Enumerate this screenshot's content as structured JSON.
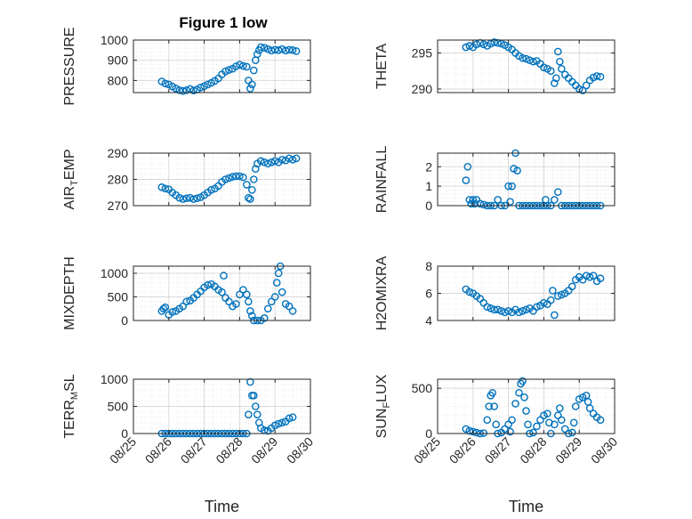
{
  "figure_title": "Figure 1 low",
  "colors": {
    "marker": "#0072BD",
    "axis": "#262626",
    "grid": "#dfdfdf"
  },
  "chart_data": [
    {
      "type": "scatter",
      "title": "Figure 1 low",
      "ylabel": "PRESSURE",
      "xlabel": "",
      "xlim": [
        "2025-08-25",
        "2025-08-30"
      ],
      "ylim": [
        740,
        1000
      ],
      "yticks": [
        800,
        900,
        1000
      ],
      "xticks": [
        "08/25",
        "08/26",
        "08/27",
        "08/28",
        "08/29",
        "08/30"
      ],
      "grid": true,
      "series": [
        {
          "x": [
            25.8,
            25.9,
            26.0,
            26.1,
            26.2,
            26.3,
            26.4,
            26.5,
            26.6,
            26.7,
            26.8,
            26.9,
            27.0,
            27.1,
            27.2,
            27.3,
            27.4,
            27.5,
            27.6,
            27.7,
            27.8,
            27.9,
            28.0,
            28.1,
            28.2,
            28.25,
            28.3,
            28.35,
            28.4,
            28.45,
            28.5,
            28.55,
            28.6,
            28.7,
            28.8,
            28.9,
            29.0,
            29.1,
            29.2,
            29.3,
            29.4,
            29.5,
            29.6
          ],
          "y": [
            795,
            785,
            780,
            770,
            760,
            752,
            748,
            752,
            758,
            750,
            755,
            765,
            772,
            780,
            788,
            798,
            810,
            830,
            845,
            852,
            858,
            870,
            878,
            872,
            868,
            800,
            760,
            780,
            850,
            900,
            930,
            950,
            965,
            962,
            955,
            948,
            952,
            950,
            955,
            948,
            952,
            950,
            945
          ]
        }
      ]
    },
    {
      "type": "scatter",
      "ylabel": "THETA",
      "xlim": [
        "2025-08-25",
        "2025-08-30"
      ],
      "ylim": [
        289.5,
        296.8
      ],
      "yticks": [
        290,
        295
      ],
      "xticks": [
        "08/25",
        "08/26",
        "08/27",
        "08/28",
        "08/29",
        "08/30"
      ],
      "grid": true,
      "series": [
        {
          "x": [
            25.8,
            25.9,
            26.0,
            26.1,
            26.2,
            26.3,
            26.4,
            26.5,
            26.6,
            26.7,
            26.8,
            26.9,
            27.0,
            27.1,
            27.2,
            27.3,
            27.4,
            27.5,
            27.6,
            27.7,
            27.8,
            27.9,
            28.0,
            28.1,
            28.2,
            28.3,
            28.35,
            28.4,
            28.45,
            28.5,
            28.6,
            28.7,
            28.8,
            28.9,
            29.0,
            29.1,
            29.2,
            29.3,
            29.4,
            29.5,
            29.6
          ],
          "y": [
            295.8,
            296.0,
            295.8,
            296.2,
            296.4,
            296.2,
            296.0,
            296.3,
            296.5,
            296.4,
            296.3,
            296.1,
            295.8,
            295.5,
            295.0,
            294.6,
            294.3,
            294.2,
            294.0,
            293.8,
            293.9,
            293.5,
            293.0,
            292.8,
            292.5,
            290.8,
            291.5,
            295.2,
            293.8,
            292.8,
            292.0,
            291.5,
            291.0,
            290.5,
            290.0,
            289.8,
            290.5,
            291.2,
            291.6,
            291.8,
            291.7
          ]
        }
      ]
    },
    {
      "type": "scatter",
      "ylabel": "AIR_TEMP",
      "xlim": [
        "2025-08-25",
        "2025-08-30"
      ],
      "ylim": [
        270,
        290
      ],
      "yticks": [
        270,
        280,
        290
      ],
      "xticks": [
        "08/25",
        "08/26",
        "08/27",
        "08/28",
        "08/29",
        "08/30"
      ],
      "grid": true,
      "series": [
        {
          "x": [
            25.8,
            25.9,
            26.0,
            26.1,
            26.2,
            26.3,
            26.4,
            26.5,
            26.6,
            26.7,
            26.8,
            26.9,
            27.0,
            27.1,
            27.2,
            27.3,
            27.4,
            27.5,
            27.6,
            27.7,
            27.8,
            27.9,
            28.0,
            28.1,
            28.2,
            28.25,
            28.3,
            28.35,
            28.4,
            28.45,
            28.5,
            28.6,
            28.7,
            28.8,
            28.9,
            29.0,
            29.1,
            29.2,
            29.3,
            29.4,
            29.5,
            29.6
          ],
          "y": [
            277,
            276.5,
            276.2,
            275,
            274,
            273,
            272.5,
            272.8,
            273,
            272.5,
            272.8,
            273.2,
            274,
            275,
            276,
            276.5,
            277.5,
            279,
            280,
            280.5,
            281,
            281.2,
            281.2,
            280.8,
            278,
            273,
            272.5,
            276,
            280,
            284,
            286,
            287,
            286.5,
            286,
            286.5,
            287,
            286.5,
            287.5,
            287.2,
            288,
            287.5,
            288
          ]
        }
      ]
    },
    {
      "type": "scatter",
      "ylabel": "RAINFALL",
      "xlim": [
        "2025-08-25",
        "2025-08-30"
      ],
      "ylim": [
        0,
        2.7
      ],
      "yticks": [
        0,
        1,
        2
      ],
      "xticks": [
        "08/25",
        "08/26",
        "08/27",
        "08/28",
        "08/29",
        "08/30"
      ],
      "grid": true,
      "series": [
        {
          "x": [
            25.8,
            25.85,
            25.9,
            25.95,
            26.0,
            26.05,
            26.1,
            26.2,
            26.3,
            26.4,
            26.5,
            26.6,
            26.7,
            26.8,
            26.9,
            27.0,
            27.05,
            27.1,
            27.15,
            27.2,
            27.25,
            27.3,
            27.4,
            27.5,
            27.6,
            27.7,
            27.8,
            27.9,
            28.0,
            28.05,
            28.1,
            28.2,
            28.3,
            28.4,
            28.5,
            28.6,
            28.7,
            28.8,
            28.9,
            29.0,
            29.1,
            29.2,
            29.3,
            29.4,
            29.5,
            29.6
          ],
          "y": [
            1.3,
            2.0,
            0.3,
            0.1,
            0.3,
            0.1,
            0.3,
            0.1,
            0.05,
            0,
            0,
            0,
            0.3,
            0,
            0,
            1.0,
            0.2,
            1.0,
            1.9,
            2.7,
            1.8,
            0,
            0,
            0,
            0,
            0,
            0,
            0,
            0,
            0.3,
            0,
            0,
            0.3,
            0.7,
            0,
            0,
            0,
            0,
            0,
            0,
            0,
            0,
            0,
            0,
            0,
            0
          ]
        }
      ]
    },
    {
      "type": "scatter",
      "ylabel": "MIXDEPTH",
      "xlim": [
        "2025-08-25",
        "2025-08-30"
      ],
      "ylim": [
        0,
        1150
      ],
      "yticks": [
        0,
        500,
        1000
      ],
      "xticks": [
        "08/25",
        "08/26",
        "08/27",
        "08/28",
        "08/29",
        "08/30"
      ],
      "grid": true,
      "series": [
        {
          "x": [
            25.8,
            25.85,
            25.9,
            26.0,
            26.1,
            26.2,
            26.3,
            26.4,
            26.5,
            26.6,
            26.7,
            26.8,
            26.9,
            27.0,
            27.1,
            27.2,
            27.3,
            27.4,
            27.5,
            27.55,
            27.6,
            27.7,
            27.8,
            27.9,
            28.0,
            28.1,
            28.2,
            28.25,
            28.3,
            28.35,
            28.4,
            28.5,
            28.6,
            28.7,
            28.8,
            28.9,
            29.0,
            29.05,
            29.1,
            29.15,
            29.2,
            29.3,
            29.4,
            29.5
          ],
          "y": [
            200,
            250,
            280,
            120,
            180,
            200,
            250,
            300,
            400,
            420,
            480,
            550,
            620,
            700,
            750,
            770,
            720,
            650,
            600,
            950,
            480,
            400,
            300,
            350,
            550,
            650,
            550,
            400,
            200,
            100,
            0,
            0,
            0,
            50,
            250,
            400,
            500,
            800,
            1000,
            1150,
            600,
            350,
            300,
            200
          ]
        }
      ]
    },
    {
      "type": "scatter",
      "ylabel": "H2OMIXRA",
      "xlim": [
        "2025-08-25",
        "2025-08-30"
      ],
      "ylim": [
        4,
        8
      ],
      "yticks": [
        4,
        6,
        8
      ],
      "xticks": [
        "08/25",
        "08/26",
        "08/27",
        "08/28",
        "08/29",
        "08/30"
      ],
      "grid": true,
      "series": [
        {
          "x": [
            25.8,
            25.9,
            26.0,
            26.1,
            26.2,
            26.3,
            26.4,
            26.5,
            26.6,
            26.7,
            26.8,
            26.9,
            27.0,
            27.1,
            27.2,
            27.3,
            27.4,
            27.5,
            27.6,
            27.7,
            27.8,
            27.9,
            28.0,
            28.1,
            28.2,
            28.25,
            28.3,
            28.4,
            28.5,
            28.6,
            28.7,
            28.8,
            28.9,
            29.0,
            29.1,
            29.2,
            29.3,
            29.4,
            29.5,
            29.6
          ],
          "y": [
            6.3,
            6.1,
            6.0,
            5.8,
            5.6,
            5.3,
            5.0,
            4.9,
            4.8,
            4.8,
            4.7,
            4.6,
            4.7,
            4.6,
            4.8,
            4.6,
            4.7,
            4.8,
            4.9,
            4.7,
            5.0,
            5.1,
            5.3,
            5.2,
            5.5,
            6.2,
            4.4,
            5.8,
            5.9,
            6.0,
            6.2,
            6.5,
            7.0,
            7.2,
            7.0,
            7.3,
            7.2,
            7.3,
            6.9,
            7.1
          ]
        }
      ]
    },
    {
      "type": "scatter",
      "ylabel": "TERR_MSL",
      "xlabel": "Time",
      "xlim": [
        "2025-08-25",
        "2025-08-30"
      ],
      "ylim": [
        0,
        1000
      ],
      "yticks": [
        0,
        500,
        1000
      ],
      "xticks": [
        "08/25",
        "08/26",
        "08/27",
        "08/28",
        "08/29",
        "08/30"
      ],
      "grid": true,
      "series": [
        {
          "x": [
            25.8,
            25.9,
            26.0,
            26.1,
            26.2,
            26.3,
            26.4,
            26.5,
            26.6,
            26.7,
            26.8,
            26.9,
            27.0,
            27.1,
            27.2,
            27.3,
            27.4,
            27.5,
            27.6,
            27.7,
            27.8,
            27.9,
            28.0,
            28.1,
            28.2,
            28.25,
            28.3,
            28.35,
            28.4,
            28.45,
            28.5,
            28.55,
            28.6,
            28.7,
            28.8,
            28.9,
            29.0,
            29.1,
            29.2,
            29.3,
            29.4,
            29.5
          ],
          "y": [
            0,
            0,
            0,
            0,
            0,
            0,
            0,
            0,
            0,
            0,
            0,
            0,
            0,
            0,
            0,
            0,
            0,
            0,
            0,
            0,
            0,
            0,
            0,
            0,
            0,
            350,
            950,
            700,
            700,
            500,
            350,
            200,
            100,
            60,
            50,
            100,
            150,
            180,
            200,
            220,
            280,
            300
          ]
        }
      ]
    },
    {
      "type": "scatter",
      "ylabel": "SUN_FLUX",
      "xlabel": "Time",
      "xlim": [
        "2025-08-25",
        "2025-08-30"
      ],
      "ylim": [
        0,
        600
      ],
      "yticks": [
        0,
        500
      ],
      "xticks": [
        "08/25",
        "08/26",
        "08/27",
        "08/28",
        "08/29",
        "08/30"
      ],
      "grid": true,
      "series": [
        {
          "x": [
            25.8,
            25.9,
            26.0,
            26.1,
            26.2,
            26.3,
            26.4,
            26.45,
            26.5,
            26.55,
            26.6,
            26.65,
            26.7,
            26.8,
            26.9,
            27.0,
            27.05,
            27.1,
            27.2,
            27.3,
            27.35,
            27.4,
            27.45,
            27.5,
            27.55,
            27.6,
            27.7,
            27.8,
            27.9,
            28.0,
            28.1,
            28.15,
            28.2,
            28.3,
            28.4,
            28.45,
            28.5,
            28.6,
            28.7,
            28.8,
            28.85,
            28.9,
            29.0,
            29.1,
            29.2,
            29.25,
            29.3,
            29.4,
            29.5,
            29.6
          ],
          "y": [
            50,
            30,
            20,
            10,
            0,
            5,
            150,
            300,
            420,
            450,
            300,
            100,
            0,
            10,
            50,
            100,
            20,
            150,
            330,
            450,
            550,
            580,
            400,
            250,
            100,
            0,
            10,
            80,
            150,
            200,
            220,
            120,
            0,
            100,
            200,
            280,
            150,
            50,
            0,
            10,
            120,
            300,
            380,
            400,
            420,
            350,
            280,
            220,
            180,
            150
          ]
        }
      ]
    }
  ]
}
